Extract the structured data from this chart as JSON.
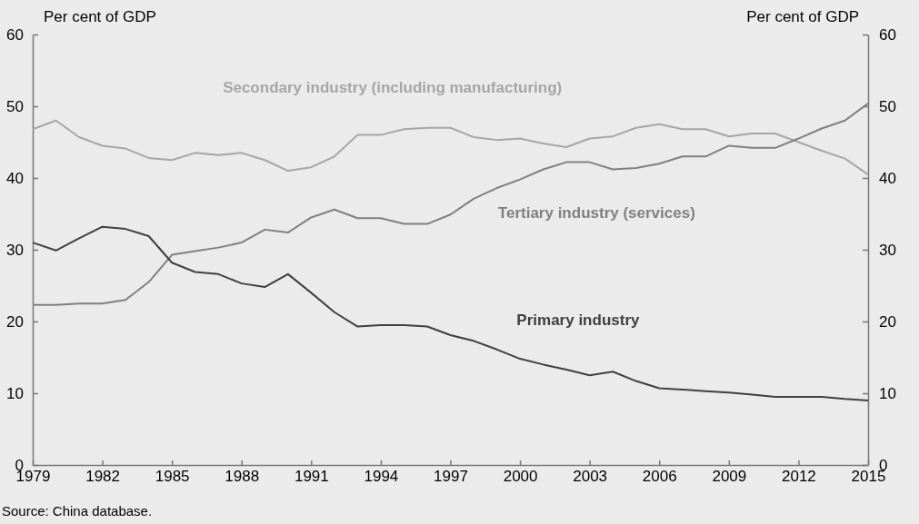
{
  "chart_data": {
    "type": "line",
    "ylabel": "Per cent of GDP",
    "y2label": "Per cent of GDP",
    "x": [
      1979,
      1980,
      1981,
      1982,
      1983,
      1984,
      1985,
      1986,
      1987,
      1988,
      1989,
      1990,
      1991,
      1992,
      1993,
      1994,
      1995,
      1996,
      1997,
      1998,
      1999,
      2000,
      2001,
      2002,
      2003,
      2004,
      2005,
      2006,
      2007,
      2008,
      2009,
      2010,
      2011,
      2012,
      2013,
      2014,
      2015
    ],
    "xlim": [
      1979,
      2015
    ],
    "xticks": [
      1979,
      1982,
      1985,
      1988,
      1991,
      1994,
      1997,
      2000,
      2003,
      2006,
      2009,
      2012,
      2015
    ],
    "ylim": [
      0,
      60
    ],
    "yticks": [
      0,
      10,
      20,
      30,
      40,
      50,
      60
    ],
    "y2lim": [
      0,
      60
    ],
    "y2ticks": [
      0,
      10,
      20,
      30,
      40,
      50,
      60
    ],
    "grid": false,
    "legend": false,
    "line_style": "solid",
    "marker": "none",
    "series": [
      {
        "name": "Secondary industry (including manufacturing)",
        "color": "#a6a6a6",
        "values": [
          46.8,
          48,
          45.7,
          44.5,
          44.1,
          42.8,
          42.5,
          43.5,
          43.2,
          43.5,
          42.5,
          41,
          41.5,
          43,
          46,
          46,
          46.8,
          47,
          47,
          45.7,
          45.3,
          45.5,
          44.8,
          44.3,
          45.5,
          45.8,
          47,
          47.5,
          46.8,
          46.8,
          45.8,
          46.2,
          46.2,
          45,
          43.8,
          42.7,
          40.5
        ]
      },
      {
        "name": "Tertiary industry (services)",
        "color": "#808080",
        "values": [
          22.3,
          22.3,
          22.5,
          22.5,
          23,
          25.5,
          29.3,
          29.8,
          30.3,
          31,
          32.8,
          32.4,
          34.5,
          35.6,
          34.4,
          34.4,
          33.6,
          33.6,
          34.9,
          37.1,
          38.6,
          39.8,
          41.2,
          42.2,
          42.2,
          41.2,
          41.4,
          42,
          43,
          43,
          44.5,
          44.2,
          44.2,
          45.5,
          46.9,
          48,
          50.4
        ]
      },
      {
        "name": "Primary industry",
        "color": "#404040",
        "values": [
          31,
          29.9,
          31.6,
          33.2,
          32.9,
          31.9,
          28.2,
          26.9,
          26.6,
          25.3,
          24.8,
          26.6,
          24,
          21.3,
          19.3,
          19.5,
          19.5,
          19.3,
          18.1,
          17.3,
          16.1,
          14.8,
          14,
          13.3,
          12.5,
          13,
          11.7,
          10.7,
          10.5,
          10.3,
          10.1,
          9.8,
          9.5,
          9.5,
          9.5,
          9.2,
          9.0
        ]
      }
    ],
    "annotations": [
      "Source: China database."
    ]
  }
}
